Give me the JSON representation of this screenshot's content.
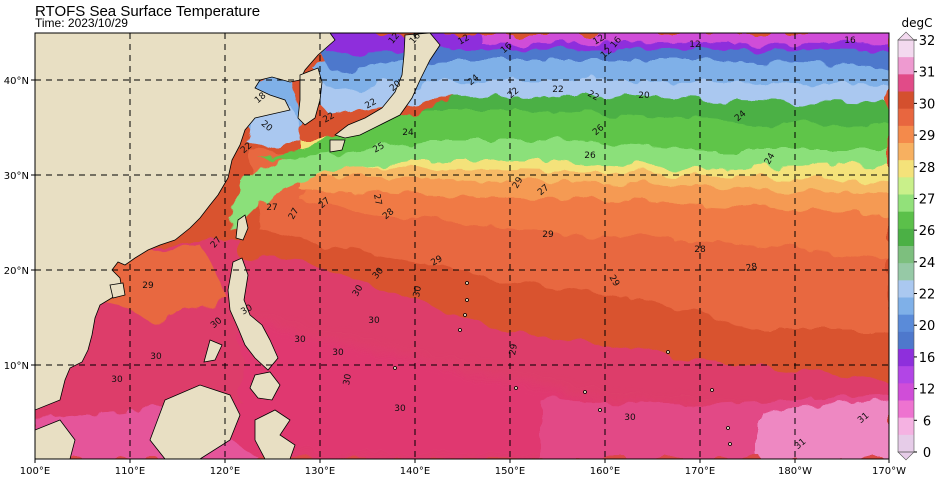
{
  "title": "RTOFS Sea Surface Temperature",
  "subtitle": "Time: 2023/10/29",
  "colorbar": {
    "unit": "degC",
    "ticks": [
      "32",
      "31",
      "30",
      "29",
      "28",
      "27",
      "26",
      "24",
      "22",
      "20",
      "16",
      "12",
      "6",
      "0"
    ],
    "colors": [
      "#f3d9ef",
      "#ee9ad0",
      "#e14b88",
      "#d4502e",
      "#e8663f",
      "#f48a4b",
      "#f7b060",
      "#f4e27a",
      "#c9f08a",
      "#92e17a",
      "#5bc04a",
      "#4bb045",
      "#7dbf7e",
      "#96c9a6",
      "#aac8f0",
      "#7fb0e8",
      "#5a8bd9",
      "#4e78cc",
      "#8e2fdc",
      "#b245e6",
      "#d04dd8",
      "#ee73d0",
      "#f5b2e2",
      "#e6cce8"
    ]
  },
  "axes": {
    "lon_ticks": [
      "100°E",
      "110°E",
      "120°E",
      "130°E",
      "140°E",
      "150°E",
      "160°E",
      "170°E",
      "180°W",
      "170°W"
    ],
    "lat_ticks": [
      "40°N",
      "30°N",
      "20°N",
      "10°N"
    ]
  },
  "contour_labels": [
    {
      "t": "12"
    },
    {
      "t": "16"
    },
    {
      "t": "12"
    },
    {
      "t": "16"
    },
    {
      "t": "12"
    },
    {
      "t": "16"
    },
    {
      "t": "12"
    },
    {
      "t": "16"
    },
    {
      "t": "12"
    },
    {
      "t": "18"
    },
    {
      "t": "20"
    },
    {
      "t": "22"
    },
    {
      "t": "22"
    },
    {
      "t": "20"
    },
    {
      "t": "22"
    },
    {
      "t": "22"
    },
    {
      "t": "20"
    },
    {
      "t": "24"
    },
    {
      "t": "22"
    },
    {
      "t": "22"
    },
    {
      "t": "24"
    },
    {
      "t": "25"
    },
    {
      "t": "26"
    },
    {
      "t": "24"
    },
    {
      "t": "24"
    },
    {
      "t": "26"
    },
    {
      "t": "29"
    },
    {
      "t": "27"
    },
    {
      "t": "27"
    },
    {
      "t": "27"
    },
    {
      "t": "27"
    },
    {
      "t": "28"
    },
    {
      "t": "27"
    },
    {
      "t": "27"
    },
    {
      "t": "29"
    },
    {
      "t": "28"
    },
    {
      "t": "28"
    },
    {
      "t": "29"
    },
    {
      "t": "29"
    },
    {
      "t": "30"
    },
    {
      "t": "30"
    },
    {
      "t": "30"
    },
    {
      "t": "29"
    },
    {
      "t": "30"
    },
    {
      "t": "30"
    },
    {
      "t": "30"
    },
    {
      "t": "30"
    },
    {
      "t": "30"
    },
    {
      "t": "29"
    },
    {
      "t": "30"
    },
    {
      "t": "30"
    },
    {
      "t": "30"
    },
    {
      "t": "30"
    },
    {
      "t": "30"
    },
    {
      "t": "31"
    },
    {
      "t": "31"
    }
  ]
}
